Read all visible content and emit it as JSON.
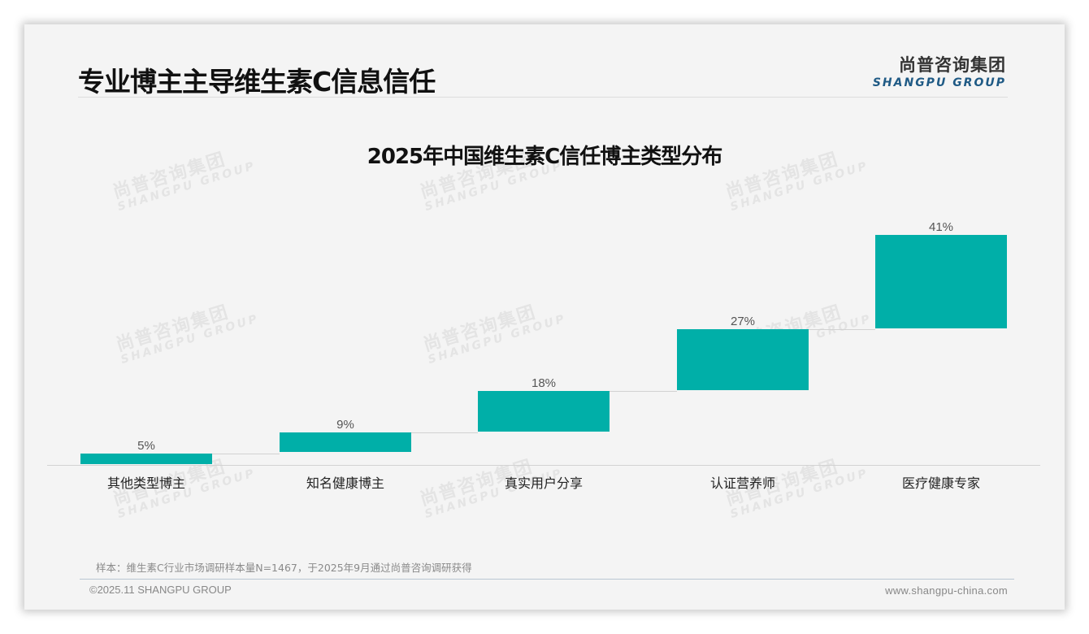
{
  "header": {
    "page_title": "专业博主主导维生素C信息信任",
    "logo_cn": "尚普咨询集团",
    "logo_en": "SHANGPU GROUP"
  },
  "watermark": {
    "cn": "尚普咨询集团",
    "en": "SHANGPU GROUP"
  },
  "colors": {
    "bar": "#00afa8",
    "background": "#f4f4f4",
    "logo_en": "#1f5a85"
  },
  "chart_data": {
    "type": "waterfall",
    "title": "2025年中国维生素C信任博主类型分布",
    "categories": [
      "其他类型博主",
      "知名健康博主",
      "真实用户分享",
      "认证营养师",
      "医疗健康专家"
    ],
    "values": [
      5,
      9,
      18,
      27,
      41
    ],
    "value_labels": [
      "5%",
      "9%",
      "18%",
      "27%",
      "41%"
    ],
    "unit": "%",
    "cumulative_end": 100,
    "xlabel": "",
    "ylabel": "",
    "ylim": [
      0,
      100
    ],
    "grid": false,
    "legend": null
  },
  "footer": {
    "note": "样本：维生素C行业市场调研样本量N=1467，于2025年9月通过尚普咨询调研获得",
    "copyright": "©2025.11 SHANGPU GROUP",
    "website": "www.shangpu-china.com"
  }
}
